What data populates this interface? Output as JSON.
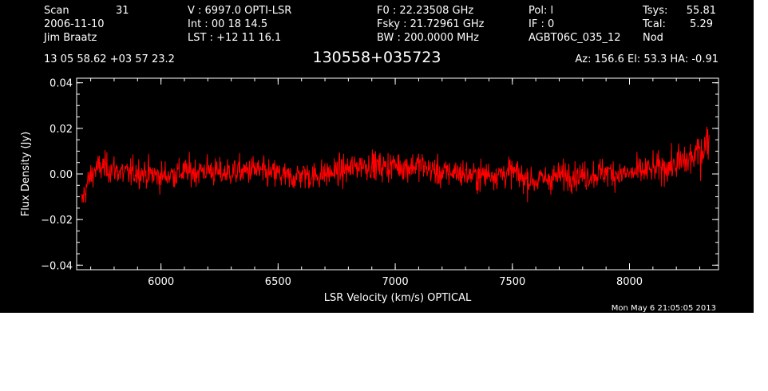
{
  "header": {
    "col1": {
      "l1a": "Scan",
      "l1b": "31",
      "l2": "2006-11-10",
      "l3": "Jim Braatz"
    },
    "col2": {
      "l1": "V   :      6997.0 OPTI-LSR",
      "l2": "Int  :  00 18 14.5",
      "l3": "LST : +12 11 16.1"
    },
    "col3": {
      "l1": "F0   :  22.23508 GHz",
      "l2": "Fsky :  21.72961 GHz",
      "l3": "BW   : 200.0000 MHz"
    },
    "col4": {
      "l1": "Pol:      l",
      "l2": "IF :       0",
      "l3": "AGBT06C_035_12"
    },
    "col5": {
      "l1a": "Tsys:",
      "l1b": "55.81",
      "l2a": "Tcal:",
      "l2b": "5.29",
      "l3": "Nod"
    },
    "coords": "13 05 58.62  +03 57 23.2",
    "source": "130558+035723",
    "pointing": "Az: 156.6  El:  53.3  HA: -0.91",
    "timestamp": "Mon May  6 21:05:05 2013"
  },
  "chart_data": {
    "type": "line",
    "xlabel": "LSR Velocity (km/s) OPTICAL",
    "ylabel": "Flux Density (Jy)",
    "xlim": [
      5640,
      8380
    ],
    "ylim": [
      -0.042,
      0.042
    ],
    "xticks": [
      6000,
      6500,
      7000,
      7500,
      8000
    ],
    "xtick_labels": [
      "6000",
      "6500",
      "7000",
      "7500",
      "8000"
    ],
    "yticks": [
      -0.04,
      -0.02,
      0.0,
      0.02,
      0.04
    ],
    "ytick_labels": [
      "−0.04",
      "−0.02",
      "0.00",
      "0.02",
      "0.04"
    ],
    "line_color": "#ff0000",
    "series": [
      {
        "x": [
          5660,
          5680,
          5700,
          5720,
          5750,
          5800,
          5850,
          5900,
          5950,
          6000,
          6050,
          6100,
          6150,
          6200,
          6250,
          6300,
          6350,
          6400,
          6450,
          6500,
          6550,
          6600,
          6650,
          6700,
          6750,
          6800,
          6850,
          6900,
          6950,
          7000,
          7050,
          7100,
          7150,
          7200,
          7250,
          7300,
          7350,
          7400,
          7450,
          7500,
          7550,
          7600,
          7650,
          7700,
          7750,
          7800,
          7850,
          7900,
          7950,
          8000,
          8050,
          8100,
          8150,
          8200,
          8250,
          8280,
          8300,
          8320,
          8340
        ],
        "y": [
          -0.013,
          -0.006,
          -0.001,
          0.002,
          0.003,
          0.002,
          0.0,
          0.001,
          0.0,
          -0.001,
          0.0,
          0.001,
          0.001,
          0.002,
          0.0,
          0.001,
          0.001,
          0.002,
          0.0,
          0.0,
          -0.002,
          0.0,
          -0.001,
          0.0,
          0.001,
          0.002,
          0.004,
          0.004,
          0.003,
          0.004,
          0.003,
          0.004,
          0.002,
          0.0,
          0.001,
          0.0,
          -0.001,
          0.0,
          0.0,
          0.001,
          -0.002,
          -0.003,
          -0.002,
          -0.001,
          0.0,
          -0.001,
          0.0,
          0.001,
          0.0,
          0.0,
          0.001,
          0.002,
          0.003,
          0.004,
          0.006,
          0.008,
          0.01,
          0.012,
          0.016
        ],
        "noise_rms": 0.0045
      }
    ]
  }
}
